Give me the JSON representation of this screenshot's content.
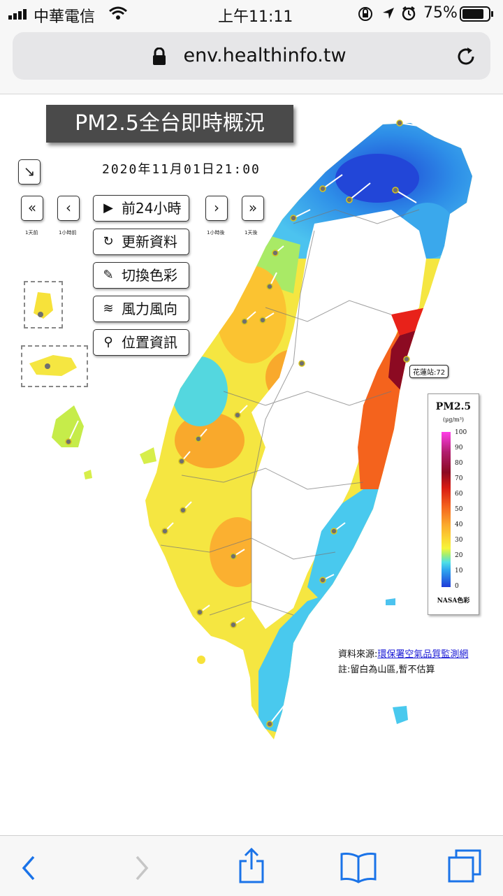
{
  "status_bar": {
    "carrier": "中華電信",
    "time": "上午11:11",
    "battery": "75%"
  },
  "browser": {
    "url": "env.healthinfo.tw"
  },
  "map": {
    "title": "PM2.5全台即時概況",
    "datetime": "2020年11月01日21:00",
    "nav": {
      "back_1day": "1天前",
      "back_1hour": "1小時前",
      "fwd_1hour": "1小時後",
      "fwd_1day": "1天後"
    },
    "menu": [
      {
        "icon": "play-circle-icon",
        "label": "前24小時"
      },
      {
        "icon": "refresh-icon",
        "label": "更新資料"
      },
      {
        "icon": "paint-brush-icon",
        "label": "切換色彩"
      },
      {
        "icon": "wind-icon",
        "label": "風力風向"
      },
      {
        "icon": "map-pin-icon",
        "label": "位置資訊"
      }
    ],
    "station_callout": "花蓮站:72",
    "legend": {
      "title": "PM2.5",
      "unit": "(μg/m³)",
      "ticks": [
        "100",
        "90",
        "80",
        "70",
        "60",
        "50",
        "40",
        "30",
        "20",
        "10",
        "0"
      ],
      "footer": "NASA色彩"
    },
    "source_prefix": "資料來源:",
    "source_link": "環保署空氣品質監測網",
    "note": "註:留白為山區,暫不估算",
    "colors": {
      "blue": "#2e8fe8",
      "cyan": "#49c9ee",
      "yellow": "#f7e23a",
      "orange": "#f9a92c",
      "red": "#e84d1a",
      "darkred": "#8c0a22"
    }
  }
}
